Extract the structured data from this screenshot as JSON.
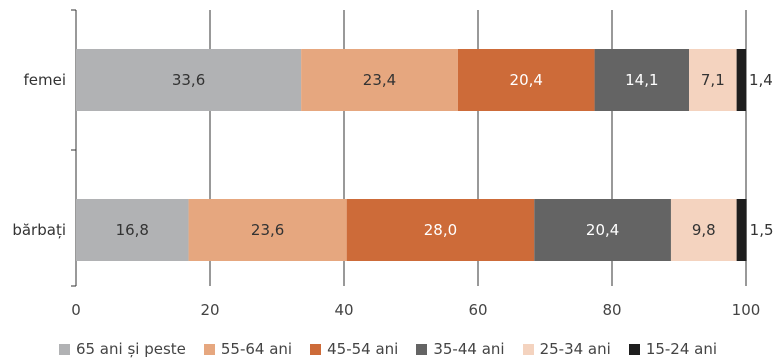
{
  "chart_data": {
    "type": "bar",
    "orientation": "horizontal",
    "stacked": true,
    "categories": [
      "femei",
      "bărbați"
    ],
    "series": [
      {
        "name": "65 ani și peste",
        "values": [
          33.6,
          16.8
        ],
        "color": "#b1b2b4"
      },
      {
        "name": "55-64 ani",
        "values": [
          23.4,
          23.6
        ],
        "color": "#e6a77f"
      },
      {
        "name": "45-54 ani",
        "values": [
          20.4,
          28.0
        ],
        "color": "#cd6b39"
      },
      {
        "name": "35-44 ani",
        "values": [
          14.1,
          20.4
        ],
        "color": "#646464"
      },
      {
        "name": "25-34 ani",
        "values": [
          7.1,
          9.8
        ],
        "color": "#f4d3bf"
      },
      {
        "name": "15-24 ani",
        "values": [
          1.4,
          1.5
        ],
        "color": "#1e1e1e"
      }
    ],
    "value_labels": [
      [
        "33,6",
        "23,4",
        "20,4",
        "14,1",
        "7,1",
        "1,4"
      ],
      [
        "16,8",
        "23,6",
        "28,0",
        "20,4",
        "9,8",
        "1,5"
      ]
    ],
    "label_colors": [
      "#333333",
      "#333333",
      "#ffffff",
      "#ffffff",
      "#333333",
      "#333333"
    ],
    "xlim": [
      0,
      100
    ],
    "xticks": [
      0,
      20,
      40,
      60,
      80,
      100
    ],
    "grid": "vertical",
    "legend_position": "bottom",
    "title": "",
    "xlabel": "",
    "ylabel": ""
  }
}
